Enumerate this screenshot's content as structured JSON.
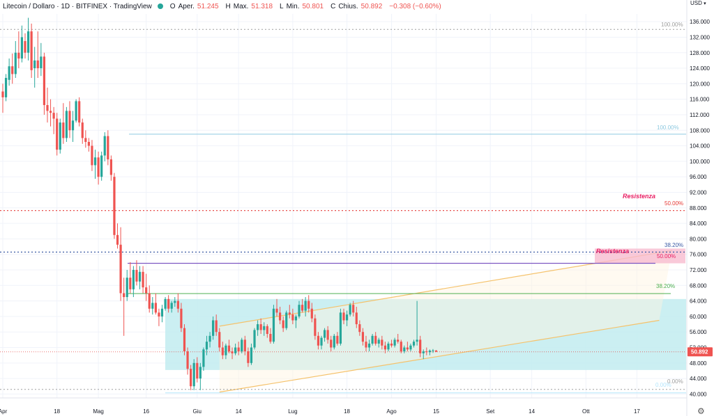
{
  "header": {
    "symbol": "Litecoin / Dollaro · 1D · BITFINEX · TradingView",
    "o_label": "O",
    "open_label": "Aper.",
    "open": "51.245",
    "h_label": "H",
    "high_label": "Max.",
    "high": "51.318",
    "l_label": "L",
    "low_label": "Min.",
    "low": "50.801",
    "c_label": "C",
    "close_label": "Chius.",
    "close": "50.892",
    "change": "−0.308 (−0.60%)"
  },
  "currency": "USD",
  "icons": {
    "currency_dropdown": "chevron-down-icon",
    "settings": "gear-icon"
  },
  "colors": {
    "up": "#26a69a",
    "down": "#ef5350",
    "zone": "#c2ecf0",
    "channel": "#f5c26b",
    "fib_top": "#8ec9e0",
    "fib_mid": "#3b5ba5",
    "fib_38_low": "#4caf50",
    "resistance": "#e91e63",
    "purple_line": "#7e57c2",
    "red_dotted": "#e53935",
    "grey_dotted": "#9e9e9e"
  },
  "chart_data": {
    "type": "candlestick",
    "ylim": [
      39,
      138
    ],
    "y_ticks": [
      "136.000",
      "132.000",
      "128.000",
      "124.000",
      "120.000",
      "116.000",
      "112.000",
      "108.000",
      "104.000",
      "100.000",
      "96.000",
      "92.000",
      "88.000",
      "84.000",
      "80.000",
      "76.000",
      "72.000",
      "68.000",
      "64.000",
      "60.000",
      "56.000",
      "52.000",
      "48.000",
      "44.000",
      "40.000"
    ],
    "x_ticks": [
      {
        "label": "Apr",
        "day": 0
      },
      {
        "label": "18",
        "day": 17
      },
      {
        "label": "Mag",
        "day": 30
      },
      {
        "label": "16",
        "day": 45
      },
      {
        "label": "Giu",
        "day": 61
      },
      {
        "label": "14",
        "day": 74
      },
      {
        "label": "Lug",
        "day": 91
      },
      {
        "label": "18",
        "day": 108
      },
      {
        "label": "Ago",
        "day": 122
      },
      {
        "label": "15",
        "day": 136
      },
      {
        "label": "Set",
        "day": 153
      },
      {
        "label": "14",
        "day": 166
      },
      {
        "label": "Ott",
        "day": 183
      },
      {
        "label": "17",
        "day": 199
      }
    ],
    "last_price": "50.892",
    "last_price_value": 50.892,
    "annotations": {
      "top_dotted_line": {
        "value": 134.0,
        "label": "100.00%"
      },
      "fib_top_line": {
        "value": 107.0,
        "label": "100.00%"
      },
      "resistance_label_upper": "Resistenza",
      "upper_red_dotted": {
        "value": 87.3,
        "label": "50.00%"
      },
      "blue_dotted": {
        "value": 76.6,
        "label": "38.20%"
      },
      "resistance_label_lower": "Resistenza",
      "purple_line": {
        "value": 73.7,
        "label": "50.00%"
      },
      "green_line": {
        "value": 65.9,
        "label": "38.20%"
      },
      "zone": {
        "top": 64.5,
        "bottom": 46.2
      },
      "bottom_dotted": {
        "value": 41.2,
        "label": "0.00%"
      },
      "bottom_fib_label": "0.00%",
      "channel_upper": [
        {
          "day": 68,
          "value": 57.5
        },
        {
          "day": 210,
          "value": 77.0
        }
      ],
      "channel_lower": [
        {
          "day": 68,
          "value": 40.5
        },
        {
          "day": 206,
          "value": 59.0
        }
      ]
    },
    "candles": [
      [
        118.0,
        120.0,
        112.5,
        116.5
      ],
      [
        116.5,
        122.5,
        115.5,
        121.5
      ],
      [
        121.0,
        126.5,
        119.5,
        124.5
      ],
      [
        124.5,
        127.8,
        120.0,
        122.5
      ],
      [
        122.5,
        131.0,
        121.5,
        128.0
      ],
      [
        128.0,
        133.5,
        124.0,
        126.5
      ],
      [
        126.5,
        135.0,
        125.5,
        132.0
      ],
      [
        131.0,
        133.0,
        126.5,
        128.0
      ],
      [
        128.0,
        137.0,
        126.0,
        133.5
      ],
      [
        133.5,
        135.5,
        121.5,
        123.5
      ],
      [
        124.0,
        129.5,
        119.0,
        126.0
      ],
      [
        126.0,
        133.5,
        121.5,
        124.0
      ],
      [
        124.0,
        130.5,
        122.0,
        127.0
      ],
      [
        127.0,
        128.0,
        112.0,
        114.5
      ],
      [
        114.5,
        119.0,
        110.0,
        113.0
      ],
      [
        113.0,
        116.0,
        109.0,
        112.5
      ],
      [
        112.5,
        114.0,
        107.0,
        111.0
      ],
      [
        111.0,
        112.5,
        101.5,
        103.0
      ],
      [
        103.0,
        111.0,
        102.0,
        110.0
      ],
      [
        110.0,
        115.0,
        104.5,
        106.0
      ],
      [
        106.0,
        114.0,
        105.0,
        113.0
      ],
      [
        113.0,
        115.5,
        106.0,
        108.0
      ],
      [
        108.0,
        113.0,
        105.0,
        110.5
      ],
      [
        110.5,
        116.0,
        110.0,
        115.5
      ],
      [
        115.5,
        116.5,
        109.0,
        110.0
      ],
      [
        110.0,
        111.0,
        104.5,
        106.0
      ],
      [
        106.0,
        108.0,
        103.5,
        105.0
      ],
      [
        105.0,
        106.0,
        102.5,
        104.0
      ],
      [
        104.0,
        105.5,
        97.5,
        99.0
      ],
      [
        99.0,
        103.0,
        95.5,
        101.0
      ],
      [
        101.0,
        102.5,
        94.0,
        96.0
      ],
      [
        96.0,
        102.5,
        95.0,
        101.5
      ],
      [
        101.5,
        107.5,
        100.0,
        106.5
      ],
      [
        106.5,
        108.0,
        99.0,
        100.5
      ],
      [
        100.5,
        101.5,
        95.0,
        96.5
      ],
      [
        96.0,
        97.0,
        80.0,
        81.0
      ],
      [
        81.0,
        84.0,
        77.5,
        78.5
      ],
      [
        78.5,
        83.0,
        64.0,
        66.0
      ],
      [
        66.0,
        70.0,
        55.0,
        65.0
      ],
      [
        65.0,
        72.0,
        64.0,
        70.0
      ],
      [
        70.0,
        74.0,
        66.0,
        67.0
      ],
      [
        67.0,
        73.0,
        65.0,
        72.0
      ],
      [
        72.0,
        74.5,
        68.0,
        69.0
      ],
      [
        69.0,
        73.0,
        67.0,
        71.5
      ],
      [
        71.5,
        73.0,
        66.0,
        67.5
      ],
      [
        67.5,
        71.0,
        64.0,
        66.0
      ],
      [
        66.0,
        68.0,
        61.0,
        62.0
      ],
      [
        62.0,
        65.0,
        60.5,
        63.5
      ],
      [
        63.5,
        66.0,
        60.5,
        61.0
      ],
      [
        61.0,
        62.0,
        57.5,
        60.0
      ],
      [
        60.0,
        63.0,
        58.5,
        62.0
      ],
      [
        62.0,
        65.0,
        61.5,
        64.5
      ],
      [
        64.5,
        65.5,
        61.0,
        62.0
      ],
      [
        62.0,
        64.0,
        61.0,
        63.5
      ],
      [
        63.5,
        65.0,
        62.5,
        64.0
      ],
      [
        64.0,
        66.0,
        61.0,
        62.0
      ],
      [
        62.0,
        63.5,
        56.0,
        57.0
      ],
      [
        57.0,
        58.0,
        50.0,
        51.0
      ],
      [
        51.0,
        52.0,
        45.0,
        46.5
      ],
      [
        46.5,
        47.5,
        41.0,
        42.0
      ],
      [
        42.0,
        49.0,
        41.0,
        48.0
      ],
      [
        48.0,
        49.5,
        43.0,
        44.0
      ],
      [
        44.0,
        48.0,
        41.0,
        47.0
      ],
      [
        47.0,
        52.0,
        46.0,
        51.5
      ],
      [
        51.5,
        55.0,
        50.0,
        53.5
      ],
      [
        53.5,
        56.0,
        52.0,
        55.0
      ],
      [
        55.0,
        60.0,
        54.0,
        59.0
      ],
      [
        59.0,
        60.5,
        55.0,
        56.0
      ],
      [
        56.0,
        57.0,
        51.0,
        52.0
      ],
      [
        52.0,
        53.5,
        49.0,
        50.0
      ],
      [
        50.0,
        53.0,
        49.0,
        52.5
      ],
      [
        52.5,
        54.0,
        50.5,
        51.0
      ],
      [
        51.0,
        52.0,
        49.0,
        50.5
      ],
      [
        50.5,
        53.0,
        50.0,
        52.0
      ],
      [
        52.0,
        53.5,
        50.0,
        51.0
      ],
      [
        51.0,
        54.5,
        50.5,
        54.0
      ],
      [
        54.0,
        55.0,
        50.0,
        51.0
      ],
      [
        51.0,
        52.0,
        47.0,
        48.0
      ],
      [
        48.0,
        53.0,
        47.5,
        52.0
      ],
      [
        52.0,
        57.0,
        51.5,
        56.5
      ],
      [
        56.5,
        59.0,
        55.0,
        58.0
      ],
      [
        58.0,
        59.5,
        55.5,
        56.5
      ],
      [
        56.5,
        58.5,
        55.0,
        57.5
      ],
      [
        57.5,
        58.0,
        54.5,
        55.5
      ],
      [
        55.5,
        57.0,
        53.0,
        53.5
      ],
      [
        53.5,
        63.0,
        53.0,
        62.0
      ],
      [
        62.0,
        64.5,
        60.0,
        61.0
      ],
      [
        61.0,
        62.5,
        58.0,
        59.0
      ],
      [
        59.0,
        60.0,
        56.0,
        57.0
      ],
      [
        57.0,
        61.5,
        56.5,
        61.0
      ],
      [
        61.0,
        63.0,
        59.5,
        60.5
      ],
      [
        60.5,
        62.0,
        58.0,
        59.0
      ],
      [
        59.0,
        60.5,
        57.0,
        60.0
      ],
      [
        60.0,
        64.0,
        59.5,
        63.0
      ],
      [
        63.0,
        64.5,
        61.0,
        61.5
      ],
      [
        61.5,
        65.0,
        60.0,
        64.0
      ],
      [
        64.0,
        65.5,
        61.0,
        62.0
      ],
      [
        62.0,
        63.5,
        58.5,
        59.5
      ],
      [
        59.5,
        60.5,
        54.0,
        55.0
      ],
      [
        55.0,
        56.0,
        51.5,
        52.5
      ],
      [
        52.5,
        55.0,
        51.5,
        54.5
      ],
      [
        54.5,
        57.0,
        53.5,
        56.5
      ],
      [
        56.5,
        57.5,
        53.0,
        54.0
      ],
      [
        54.0,
        55.0,
        51.0,
        52.0
      ],
      [
        52.0,
        55.5,
        51.5,
        55.0
      ],
      [
        55.0,
        56.0,
        52.5,
        53.0
      ],
      [
        53.0,
        62.0,
        52.5,
        61.0
      ],
      [
        61.0,
        62.0,
        58.0,
        59.0
      ],
      [
        59.0,
        61.5,
        57.5,
        60.5
      ],
      [
        60.5,
        63.5,
        60.0,
        63.0
      ],
      [
        63.0,
        64.0,
        60.0,
        61.0
      ],
      [
        61.0,
        62.5,
        57.0,
        58.0
      ],
      [
        58.0,
        59.0,
        55.0,
        56.0
      ],
      [
        56.0,
        57.0,
        52.5,
        53.5
      ],
      [
        53.5,
        55.0,
        51.0,
        52.0
      ],
      [
        52.0,
        54.0,
        51.0,
        53.0
      ],
      [
        53.0,
        55.5,
        52.5,
        55.0
      ],
      [
        55.0,
        56.0,
        52.5,
        53.0
      ],
      [
        53.0,
        54.5,
        52.0,
        54.0
      ],
      [
        54.0,
        55.0,
        51.5,
        52.5
      ],
      [
        52.5,
        53.5,
        50.5,
        51.5
      ],
      [
        51.5,
        53.5,
        51.0,
        53.0
      ],
      [
        53.0,
        54.0,
        52.0,
        52.5
      ],
      [
        52.5,
        54.5,
        52.0,
        54.0
      ],
      [
        54.0,
        55.5,
        53.0,
        53.5
      ],
      [
        53.5,
        54.0,
        50.5,
        51.0
      ],
      [
        51.0,
        52.5,
        50.5,
        52.0
      ],
      [
        52.0,
        53.5,
        51.0,
        51.5
      ],
      [
        51.5,
        53.0,
        51.0,
        52.5
      ],
      [
        52.5,
        54.0,
        52.0,
        53.5
      ],
      [
        53.5,
        64.0,
        52.5,
        54.0
      ],
      [
        54.0,
        55.0,
        49.5,
        50.5
      ],
      [
        50.5,
        51.5,
        49.0,
        51.0
      ],
      [
        51.0,
        52.0,
        50.0,
        50.8
      ],
      [
        50.8,
        51.5,
        50.0,
        51.2
      ],
      [
        51.2,
        51.6,
        50.6,
        51.245
      ],
      [
        51.245,
        51.318,
        50.801,
        50.892
      ]
    ]
  }
}
